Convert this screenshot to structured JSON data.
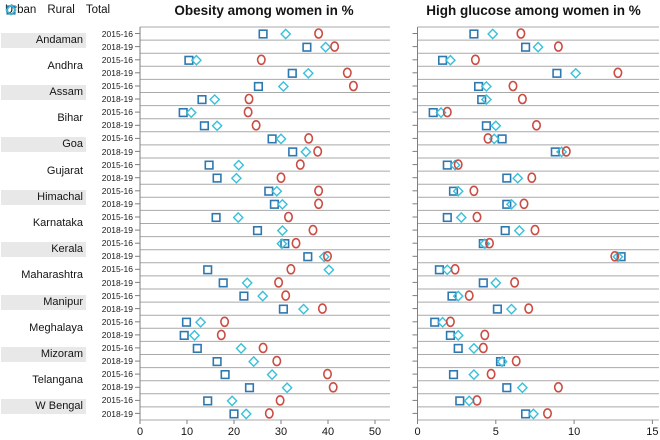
{
  "legend": [
    {
      "label": "Urban",
      "shape": "circle",
      "color": "#cb4c43"
    },
    {
      "label": "Rural",
      "shape": "square",
      "color": "#2e78b0"
    },
    {
      "label": "Total",
      "shape": "diamond",
      "color": "#38c0da"
    }
  ],
  "years": [
    "2015-16",
    "2018-19"
  ],
  "states": [
    {
      "name": "Andaman",
      "shaded": true
    },
    {
      "name": "Andhra",
      "shaded": false
    },
    {
      "name": "Assam",
      "shaded": true
    },
    {
      "name": "Bihar",
      "shaded": false
    },
    {
      "name": "Goa",
      "shaded": true
    },
    {
      "name": "Gujarat",
      "shaded": false
    },
    {
      "name": "Himachal",
      "shaded": true
    },
    {
      "name": "Karnataka",
      "shaded": false
    },
    {
      "name": "Kerala",
      "shaded": true
    },
    {
      "name": "Maharashtra",
      "shaded": false
    },
    {
      "name": "Manipur",
      "shaded": true
    },
    {
      "name": "Meghalaya",
      "shaded": false
    },
    {
      "name": "Mizoram",
      "shaded": true
    },
    {
      "name": "Telangana",
      "shaded": false
    },
    {
      "name": "W Bengal",
      "shaded": true
    }
  ],
  "grid_color": "#a9a9a9",
  "axis_color": "#7f7f7f",
  "chart_data": [
    {
      "type": "scatter",
      "title": "Obesity among women in %",
      "xlabel": "",
      "ylabel": "",
      "xlim": [
        0,
        50
      ],
      "xticks": [
        0,
        10,
        20,
        30,
        40,
        50
      ],
      "grid": true,
      "legend_position": "top-left",
      "series_names": [
        "Urban",
        "Rural",
        "Total"
      ],
      "rows": [
        {
          "state": "Andaman",
          "year": "2015-16",
          "urban": 38.0,
          "rural": 26.2,
          "total": 31.0
        },
        {
          "state": "Andaman",
          "year": "2018-19",
          "urban": 41.4,
          "rural": 35.5,
          "total": 39.5
        },
        {
          "state": "Andhra",
          "year": "2015-16",
          "urban": 25.8,
          "rural": 10.4,
          "total": 12.0
        },
        {
          "state": "Andhra",
          "year": "2018-19",
          "urban": 44.1,
          "rural": 32.4,
          "total": 35.8
        },
        {
          "state": "Assam",
          "year": "2015-16",
          "urban": 45.4,
          "rural": 25.2,
          "total": 30.5
        },
        {
          "state": "Assam",
          "year": "2018-19",
          "urban": 23.2,
          "rural": 13.2,
          "total": 15.9
        },
        {
          "state": "Bihar",
          "year": "2015-16",
          "urban": 23.0,
          "rural": 9.2,
          "total": 10.9
        },
        {
          "state": "Bihar",
          "year": "2018-19",
          "urban": 24.7,
          "rural": 13.7,
          "total": 16.4
        },
        {
          "state": "Goa",
          "year": "2015-16",
          "urban": 35.9,
          "rural": 28.1,
          "total": 30.0
        },
        {
          "state": "Goa",
          "year": "2018-19",
          "urban": 37.8,
          "rural": 32.5,
          "total": 35.3
        },
        {
          "state": "Gujarat",
          "year": "2015-16",
          "urban": 34.1,
          "rural": 14.7,
          "total": 21.0
        },
        {
          "state": "Gujarat",
          "year": "2018-19",
          "urban": 30.0,
          "rural": 16.4,
          "total": 20.5
        },
        {
          "state": "Himachal",
          "year": "2015-16",
          "urban": 38.0,
          "rural": 27.4,
          "total": 29.1
        },
        {
          "state": "Himachal",
          "year": "2018-19",
          "urban": 38.0,
          "rural": 28.6,
          "total": 30.3
        },
        {
          "state": "Karnataka",
          "year": "2015-16",
          "urban": 31.6,
          "rural": 16.2,
          "total": 20.9
        },
        {
          "state": "Karnataka",
          "year": "2018-19",
          "urban": 36.8,
          "rural": 25.0,
          "total": 30.3
        },
        {
          "state": "Kerala",
          "year": "2015-16",
          "urban": 33.2,
          "rural": 30.8,
          "total": 30.2
        },
        {
          "state": "Kerala",
          "year": "2018-19",
          "urban": 39.9,
          "rural": 35.7,
          "total": 39.2
        },
        {
          "state": "Maharashtra",
          "year": "2015-16",
          "urban": 32.1,
          "rural": 14.4,
          "total": 40.2
        },
        {
          "state": "Maharashtra",
          "year": "2018-19",
          "urban": 29.5,
          "rural": 17.7,
          "total": 22.8
        },
        {
          "state": "Manipur",
          "year": "2015-16",
          "urban": 31.0,
          "rural": 22.1,
          "total": 26.1
        },
        {
          "state": "Manipur",
          "year": "2018-19",
          "urban": 38.8,
          "rural": 30.5,
          "total": 34.8
        },
        {
          "state": "Meghalaya",
          "year": "2015-16",
          "urban": 18.0,
          "rural": 9.9,
          "total": 12.9
        },
        {
          "state": "Meghalaya",
          "year": "2018-19",
          "urban": 17.3,
          "rural": 9.4,
          "total": 11.6
        },
        {
          "state": "Mizoram",
          "year": "2015-16",
          "urban": 26.2,
          "rural": 12.2,
          "total": 21.5
        },
        {
          "state": "Mizoram",
          "year": "2018-19",
          "urban": 29.1,
          "rural": 16.4,
          "total": 24.2
        },
        {
          "state": "Telangana",
          "year": "2015-16",
          "urban": 39.9,
          "rural": 18.1,
          "total": 28.1
        },
        {
          "state": "Telangana",
          "year": "2018-19",
          "urban": 41.1,
          "rural": 23.3,
          "total": 31.3
        },
        {
          "state": "W Bengal",
          "year": "2015-16",
          "urban": 29.8,
          "rural": 14.4,
          "total": 19.6
        },
        {
          "state": "W Bengal",
          "year": "2018-19",
          "urban": 27.5,
          "rural": 20.0,
          "total": 22.6
        }
      ]
    },
    {
      "type": "scatter",
      "title": "High glucose among women in %",
      "xlabel": "",
      "ylabel": "",
      "xlim": [
        0,
        15
      ],
      "xticks": [
        0,
        5,
        10,
        15
      ],
      "grid": true,
      "legend_position": "top-left",
      "series_names": [
        "Urban",
        "Rural",
        "Total"
      ],
      "rows": [
        {
          "state": "Andaman",
          "year": "2015-16",
          "urban": 6.6,
          "rural": 3.6,
          "total": 4.8
        },
        {
          "state": "Andaman",
          "year": "2018-19",
          "urban": 9.0,
          "rural": 6.9,
          "total": 7.7
        },
        {
          "state": "Andhra",
          "year": "2015-16",
          "urban": 3.7,
          "rural": 1.6,
          "total": 2.1
        },
        {
          "state": "Andhra",
          "year": "2018-19",
          "urban": 12.8,
          "rural": 8.9,
          "total": 10.1
        },
        {
          "state": "Assam",
          "year": "2015-16",
          "urban": 6.1,
          "rural": 3.9,
          "total": 4.4
        },
        {
          "state": "Assam",
          "year": "2018-19",
          "urban": 6.7,
          "rural": 4.1,
          "total": 4.4
        },
        {
          "state": "Bihar",
          "year": "2015-16",
          "urban": 1.9,
          "rural": 1.0,
          "total": 1.5
        },
        {
          "state": "Bihar",
          "year": "2018-19",
          "urban": 7.6,
          "rural": 4.4,
          "total": 5.0
        },
        {
          "state": "Goa",
          "year": "2015-16",
          "urban": 4.5,
          "rural": 5.4,
          "total": 4.9
        },
        {
          "state": "Goa",
          "year": "2018-19",
          "urban": 9.5,
          "rural": 8.8,
          "total": 9.2
        },
        {
          "state": "Gujarat",
          "year": "2015-16",
          "urban": 2.6,
          "rural": 1.9,
          "total": 2.4
        },
        {
          "state": "Gujarat",
          "year": "2018-19",
          "urban": 7.3,
          "rural": 5.7,
          "total": 6.4
        },
        {
          "state": "Himachal",
          "year": "2015-16",
          "urban": 3.6,
          "rural": 2.3,
          "total": 2.6
        },
        {
          "state": "Himachal",
          "year": "2018-19",
          "urban": 6.8,
          "rural": 5.7,
          "total": 6.0
        },
        {
          "state": "Karnataka",
          "year": "2015-16",
          "urban": 3.8,
          "rural": 1.9,
          "total": 2.8
        },
        {
          "state": "Karnataka",
          "year": "2018-19",
          "urban": 7.5,
          "rural": 5.6,
          "total": 6.5
        },
        {
          "state": "Kerala",
          "year": "2015-16",
          "urban": 4.6,
          "rural": 4.2,
          "total": 4.3
        },
        {
          "state": "Kerala",
          "year": "2018-19",
          "urban": 12.6,
          "rural": 13.0,
          "total": 12.8
        },
        {
          "state": "Maharashtra",
          "year": "2015-16",
          "urban": 2.4,
          "rural": 1.4,
          "total": 1.9
        },
        {
          "state": "Maharashtra",
          "year": "2018-19",
          "urban": 6.2,
          "rural": 4.2,
          "total": 5.0
        },
        {
          "state": "Manipur",
          "year": "2015-16",
          "urban": 3.3,
          "rural": 2.2,
          "total": 2.6
        },
        {
          "state": "Manipur",
          "year": "2018-19",
          "urban": 7.1,
          "rural": 5.1,
          "total": 6.0
        },
        {
          "state": "Meghalaya",
          "year": "2015-16",
          "urban": 2.1,
          "rural": 1.1,
          "total": 1.6
        },
        {
          "state": "Meghalaya",
          "year": "2018-19",
          "urban": 4.3,
          "rural": 2.1,
          "total": 2.6
        },
        {
          "state": "Mizoram",
          "year": "2015-16",
          "urban": 4.2,
          "rural": 2.6,
          "total": 3.6
        },
        {
          "state": "Mizoram",
          "year": "2018-19",
          "urban": 6.3,
          "rural": 5.3,
          "total": 5.4
        },
        {
          "state": "Telangana",
          "year": "2015-16",
          "urban": 4.7,
          "rural": 2.3,
          "total": 3.6
        },
        {
          "state": "Telangana",
          "year": "2018-19",
          "urban": 9.0,
          "rural": 5.7,
          "total": 6.7
        },
        {
          "state": "W Bengal",
          "year": "2015-16",
          "urban": 3.8,
          "rural": 2.7,
          "total": 3.3
        },
        {
          "state": "W Bengal",
          "year": "2018-19",
          "urban": 8.3,
          "rural": 6.9,
          "total": 7.4
        }
      ]
    }
  ]
}
